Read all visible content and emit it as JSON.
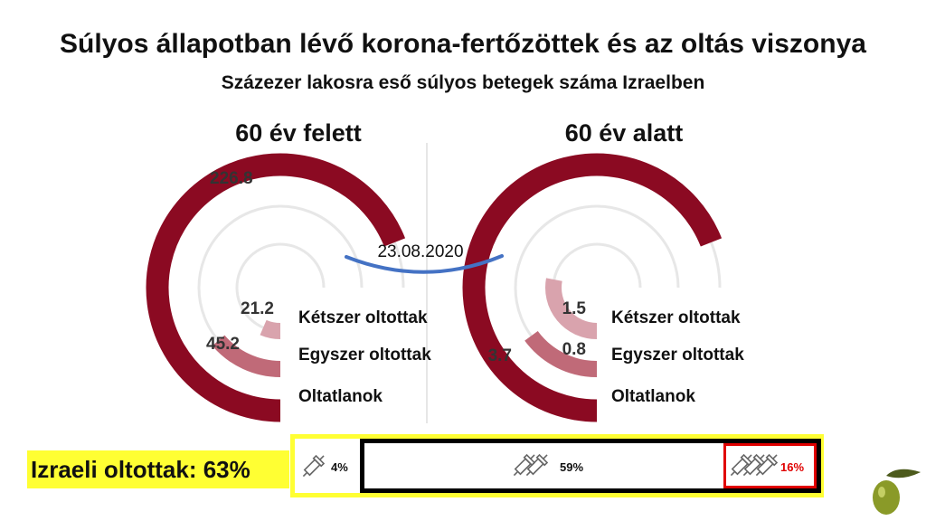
{
  "title": "Súlyos állapotban lévő korona-fertőzöttek és az oltás viszonya",
  "subtitle": "Százezer lakosra eső súlyos betegek száma Izraelben",
  "date_label": "23.08.2020",
  "colors": {
    "unvaccinated": "#8b0a22",
    "one_dose": "#c06a78",
    "two_doses": "#d9a3ad",
    "track": "#e7e7e7",
    "date_curve": "#4472c4",
    "highlight": "#ffff33",
    "red": "#e00000"
  },
  "chart_data": [
    {
      "type": "radial-bar",
      "title": "60 év felett",
      "categories": [
        "Kétszer oltottak",
        "Egyszer oltottak",
        "Oltatlanok"
      ],
      "values": [
        21.2,
        45.2,
        226.8
      ],
      "value_labels": [
        "21.2",
        "45.2",
        "226.8"
      ]
    },
    {
      "type": "radial-bar",
      "title": "60 év alatt",
      "categories": [
        "Kétszer oltottak",
        "Egyszer oltottak",
        "Oltatlanok"
      ],
      "values": [
        1.5,
        0.8,
        3.7
      ],
      "value_labels": [
        "1.5",
        "0.8",
        "3.7"
      ]
    }
  ],
  "vaccination": {
    "label": "Izraeli oltottak:  63%",
    "segments": [
      {
        "doses": 1,
        "percent": "4%"
      },
      {
        "doses": 2,
        "percent": "59%"
      },
      {
        "doses": 3,
        "percent": "16%"
      }
    ]
  },
  "logo_icon": "olive-icon"
}
